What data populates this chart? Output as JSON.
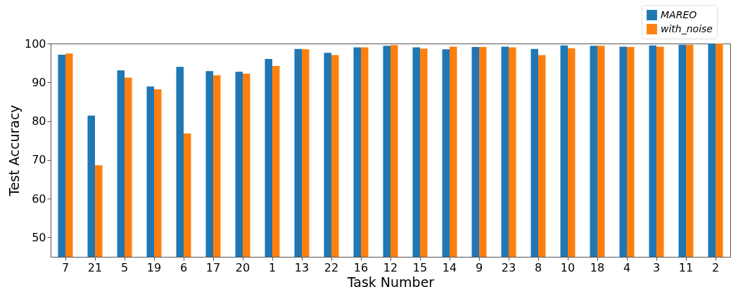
{
  "chart_data": {
    "type": "bar",
    "xlabel": "Task Number",
    "ylabel": "Test Accuracy",
    "categories": [
      "7",
      "21",
      "5",
      "19",
      "6",
      "17",
      "20",
      "1",
      "13",
      "22",
      "16",
      "12",
      "15",
      "14",
      "9",
      "23",
      "8",
      "10",
      "18",
      "4",
      "3",
      "11",
      "2"
    ],
    "series": [
      {
        "name": "MAREO",
        "color": "#1f77b4",
        "values": [
          97.1,
          81.4,
          93.1,
          88.9,
          94.0,
          92.9,
          92.7,
          96.0,
          98.6,
          97.6,
          99.0,
          99.4,
          99.0,
          98.5,
          99.1,
          99.2,
          98.6,
          99.5,
          99.4,
          99.2,
          99.5,
          99.7,
          100
        ]
      },
      {
        "name": "with_noise",
        "color": "#ff7f0e",
        "values": [
          97.4,
          68.6,
          91.2,
          88.2,
          76.8,
          91.8,
          92.2,
          94.2,
          98.5,
          97.0,
          99.0,
          99.6,
          98.7,
          99.2,
          99.1,
          99.0,
          97.0,
          98.8,
          99.4,
          99.1,
          99.2,
          99.7,
          100
        ]
      }
    ],
    "ylim": [
      45,
      100
    ],
    "yticks": [
      50,
      60,
      70,
      80,
      90,
      100
    ],
    "grid": false,
    "legend": "top right"
  }
}
